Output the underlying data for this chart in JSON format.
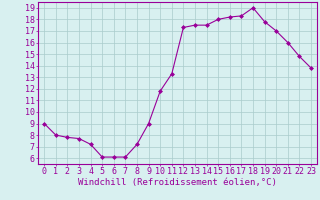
{
  "x": [
    0,
    1,
    2,
    3,
    4,
    5,
    6,
    7,
    8,
    9,
    10,
    11,
    12,
    13,
    14,
    15,
    16,
    17,
    18,
    19,
    20,
    21,
    22,
    23
  ],
  "y": [
    9.0,
    8.0,
    7.8,
    7.7,
    7.2,
    6.1,
    6.1,
    6.1,
    7.2,
    9.0,
    11.8,
    13.3,
    17.3,
    17.5,
    17.5,
    18.0,
    18.2,
    18.3,
    19.0,
    17.8,
    17.0,
    16.0,
    14.8,
    13.8
  ],
  "line_color": "#990099",
  "marker": "D",
  "marker_size": 2.0,
  "bg_color": "#d8f0f0",
  "grid_color": "#aacccc",
  "xlabel": "Windchill (Refroidissement éolien,°C)",
  "xlabel_color": "#990099",
  "ylabel_ticks": [
    6,
    7,
    8,
    9,
    10,
    11,
    12,
    13,
    14,
    15,
    16,
    17,
    18,
    19
  ],
  "xlim": [
    -0.5,
    23.5
  ],
  "ylim": [
    5.5,
    19.5
  ],
  "tick_label_color": "#990099",
  "axis_color": "#990099",
  "xlabel_fontsize": 6.5,
  "tick_fontsize": 6.0,
  "linewidth": 0.8
}
